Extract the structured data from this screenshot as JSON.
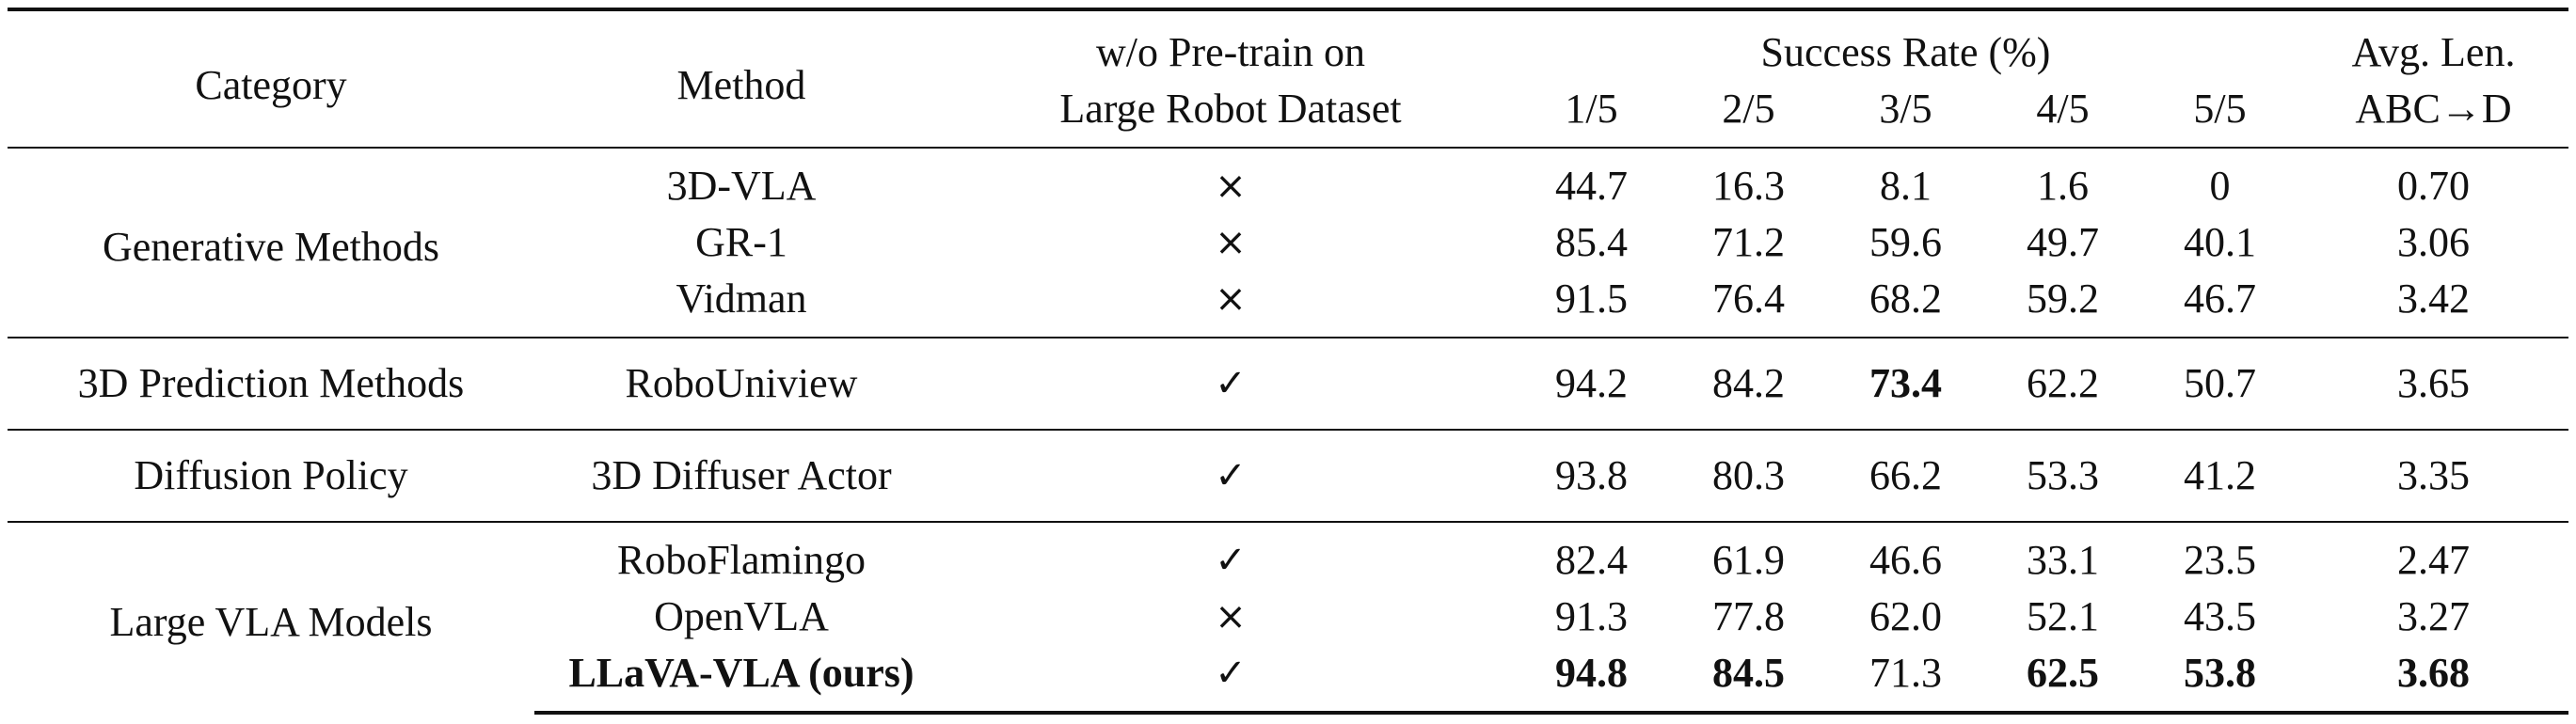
{
  "header": {
    "category": "Category",
    "method": "Method",
    "pretrain_line1": "w/o Pre-train on",
    "pretrain_line2": "Large Robot Dataset",
    "success_rate": "Success Rate (%)",
    "sr_cols": [
      "1/5",
      "2/5",
      "3/5",
      "4/5",
      "5/5"
    ],
    "avg_line1": "Avg. Len.",
    "avg_line2": "ABC→D"
  },
  "groups": [
    {
      "category": "Generative Methods",
      "rows": [
        {
          "method": "3D-VLA",
          "pretrain": "×",
          "sr": [
            "44.7",
            "16.3",
            "8.1",
            "1.6",
            "0"
          ],
          "avg": "0.70"
        },
        {
          "method": "GR-1",
          "pretrain": "×",
          "sr": [
            "85.4",
            "71.2",
            "59.6",
            "49.7",
            "40.1"
          ],
          "avg": "3.06"
        },
        {
          "method": "Vidman",
          "pretrain": "×",
          "sr": [
            "91.5",
            "76.4",
            "68.2",
            "59.2",
            "46.7"
          ],
          "avg": "3.42"
        }
      ]
    },
    {
      "category": "3D Prediction Methods",
      "rows": [
        {
          "method": "RoboUniview",
          "pretrain": "✓",
          "sr": [
            "94.2",
            "84.2",
            "73.4",
            "62.2",
            "50.7"
          ],
          "avg": "3.65"
        }
      ]
    },
    {
      "category": "Diffusion Policy",
      "rows": [
        {
          "method": "3D Diffuser Actor",
          "pretrain": "✓",
          "sr": [
            "93.8",
            "80.3",
            "66.2",
            "53.3",
            "41.2"
          ],
          "avg": "3.35"
        }
      ]
    },
    {
      "category": "Large VLA Models",
      "rows": [
        {
          "method": "RoboFlamingo",
          "pretrain": "✓",
          "sr": [
            "82.4",
            "61.9",
            "46.6",
            "33.1",
            "23.5"
          ],
          "avg": "2.47"
        },
        {
          "method": "OpenVLA",
          "pretrain": "×",
          "sr": [
            "91.3",
            "77.8",
            "62.0",
            "52.1",
            "43.5"
          ],
          "avg": "3.27"
        },
        {
          "method": "LLaVA-VLA (ours)",
          "pretrain": "✓",
          "sr": [
            "94.8",
            "84.5",
            "71.3",
            "62.5",
            "53.8"
          ],
          "avg": "3.68"
        }
      ]
    }
  ]
}
